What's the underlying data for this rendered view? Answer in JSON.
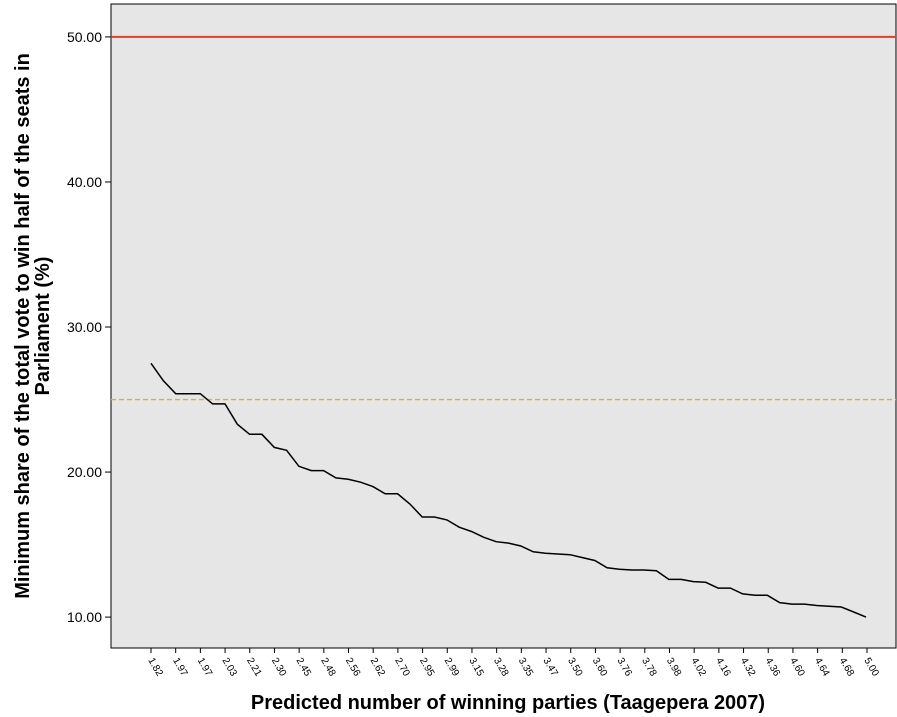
{
  "chart_data": {
    "type": "line",
    "title": "",
    "xlabel": "Predicted number of winning parties (Taagepera 2007)",
    "ylabel_lines": [
      "Minimum share of the total vote to win half of the seats in",
      "Parliament (%)"
    ],
    "ylim": [
      7.87,
      52.27
    ],
    "yticks": [
      "10.00",
      "20.00",
      "30.00",
      "40.00",
      "50.00"
    ],
    "ytick_values": [
      10,
      20,
      30,
      40,
      50
    ],
    "grid": false,
    "x_tick_labels": [
      "1.82",
      "1.97",
      "1.97",
      "2.03",
      "2.21",
      "2.30",
      "2.45",
      "2.48",
      "2.56",
      "2.62",
      "2.70",
      "2.95",
      "2.99",
      "3.15",
      "3.28",
      "3.35",
      "3.47",
      "3.50",
      "3.60",
      "3.76",
      "3.78",
      "3.98",
      "4.02",
      "4.16",
      "4.32",
      "4.36",
      "4.60",
      "4.64",
      "4.68",
      "5.00"
    ],
    "series": [
      {
        "values": [
          27.5,
          26.3,
          25.4,
          25.4,
          25.4,
          24.7,
          24.7,
          23.3,
          22.6,
          22.6,
          21.7,
          21.5,
          20.4,
          20.1,
          20.1,
          19.6,
          19.5,
          19.3,
          19.0,
          18.5,
          18.5,
          17.8,
          16.9,
          16.9,
          16.7,
          16.2,
          15.9,
          15.5,
          15.2,
          15.1,
          14.9,
          14.5,
          14.4,
          14.35,
          14.3,
          14.1,
          13.9,
          13.4,
          13.3,
          13.25,
          13.25,
          13.2,
          12.6,
          12.6,
          12.45,
          12.4,
          12.0,
          12.0,
          11.6,
          11.5,
          11.5,
          11.0,
          10.9,
          10.9,
          10.8,
          10.75,
          10.7,
          10.35,
          10.0
        ]
      }
    ],
    "reference_lines": [
      {
        "y": 50,
        "color": "#e63b2e",
        "style": "solid"
      },
      {
        "y": 25,
        "color": "#f5a142",
        "style": "dashed"
      }
    ],
    "colors": {
      "plot_background": "#e6e6e6",
      "line": "#000000"
    }
  }
}
